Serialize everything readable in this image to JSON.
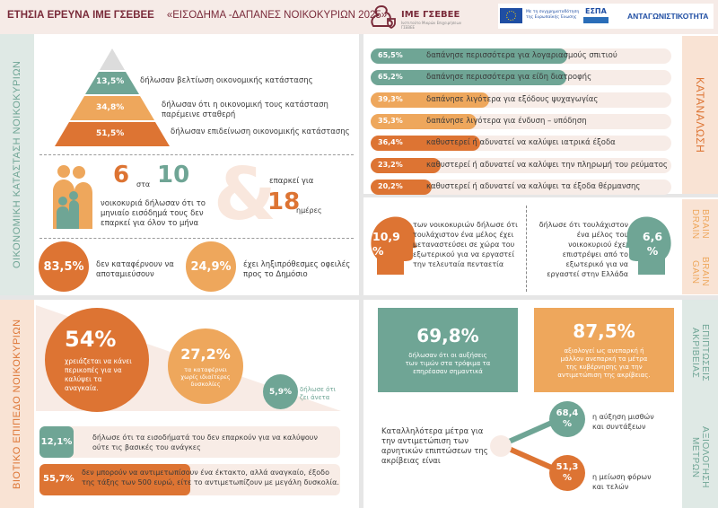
{
  "header": {
    "survey": "ΕΤΗΣΙΑ ΕΡΕΥΝΑ ΙΜΕ ΓΣΕΒΕΕ",
    "title": "«ΕΙΣΟΔΗΜΑ -ΔΑΠΑΝΕΣ ΝΟΙΚΟΚΥΡΙΩΝ 2025»",
    "logo_name": "ΙΜΕ ΓΣΕΒΕΕ",
    "logo_sub": "Ινστιτούτο Μικρών Επιχειρήσεων ΓΣΕΒΕΕ",
    "eu_text": "Με τη συγχρηματοδότηση της Ευρωπαϊκής Ένωσης",
    "espa": "ΕΣΠΑ",
    "program": "ΑΝΤΑΓΩΝΙΣΤΙΚΟΤΗΤΑ"
  },
  "colors": {
    "teal": "#6fa595",
    "orange": "#dd7433",
    "light_orange": "#eea75c",
    "maroon": "#7a2b3a"
  },
  "financial": {
    "section_label": "ΟΙΚΟΝΟΜΙΚΗ ΚΑΤΑΣΤΑΣΗ ΝΟΙΚΟΚΥΡΙΩΝ",
    "pyramid": [
      {
        "value": "13,5%",
        "label": "δήλωσαν βελτίωση οικονομικής κατάστασης"
      },
      {
        "value": "34,8%",
        "label": "δήλωσαν ότι η οικονομική τους κατάσταση παρέμεινε σταθερή"
      },
      {
        "value": "51,5%",
        "label": "δήλωσαν επιδείνωση οικονομικής κατάστασης"
      }
    ],
    "ratio_a": "6",
    "ratio_word": "στα",
    "ratio_b": "10",
    "ratio_text": "νοικοκυριά δήλωσαν ότι το μηνιαίο εισόδημά τους δεν επαρκεί για όλον το μήνα",
    "ampersand": "&",
    "suffices_for": "επαρκεί για",
    "days": "18",
    "days_unit": "ημέρες",
    "savings_value": "83,5%",
    "savings_text": "δεν καταφέρνουν να αποταμιεύσουν",
    "debts_value": "24,9%",
    "debts_text": "έχει ληξιπρόθεσμες οφειλές προς το Δημόσιο"
  },
  "consumption": {
    "section_label": "ΚΑΤΑΝΑΛΩΣΗ",
    "bars": [
      {
        "value": "65,5%",
        "pct": 65.5,
        "color": "teal",
        "label": "δαπάνησε περισσότερα για λογαριασμούς σπιτιού"
      },
      {
        "value": "65,2%",
        "pct": 65.2,
        "color": "teal",
        "label": "δαπάνησε περισσότερα για είδη διατροφής"
      },
      {
        "value": "39,3%",
        "pct": 39.3,
        "color": "light_orange",
        "label": "δαπάνησε λιγότερα για εξόδους ψυχαγωγίας"
      },
      {
        "value": "35,3%",
        "pct": 35.3,
        "color": "light_orange",
        "label": "δαπάνησε λιγότερα για ένδυση – υπόδηση"
      },
      {
        "value": "36,4%",
        "pct": 36.4,
        "color": "orange",
        "label": "καθυστερεί ή αδυνατεί να καλύψει ιατρικά έξοδα"
      },
      {
        "value": "23,2%",
        "pct": 23.2,
        "color": "orange",
        "label": "καθυστερεί ή αδυνατεί να καλύψει την πληρωμή του ρεύματος"
      },
      {
        "value": "20,2%",
        "pct": 20.2,
        "color": "orange",
        "label": "καθυστερεί ή αδυνατεί να καλύψει τα έξοδα θέρμανσης"
      }
    ]
  },
  "brain": {
    "label_drain": "BRAIN DRAIN",
    "label_gain": "BRAIN GAIN",
    "drain_value": "10,9 %",
    "drain_text": "των νοικοκυριών δήλωσε ότι τουλάχιστον ένα μέλος έχει μεταναστεύσει σε χώρα του εξωτερικού για να εργαστεί την τελευταία πενταετία",
    "gain_value": "6,6 %",
    "gain_text": "δήλωσε ότι τουλάχιστον ένα μέλος του νοικοκυριού έχει επιστρέψει από το εξωτερικό για να εργαστεί στην Ελλάδα"
  },
  "living": {
    "section_label": "ΒΙΟΤΙΚΟ ΕΠΙΠΕΔΟ ΝΟΙΚΟΚΥΡΙΩΝ",
    "c1_value": "54%",
    "c1_text": "χρειάζεται να κάνει περικοπές για να καλύψει τα αναγκαία.",
    "c2_value": "27,2%",
    "c2_text": "τα καταφέρνει χωρίς ιδιαίτερες δυσκολίες",
    "c3_value": "5,9%",
    "c3_text": "δήλωσε ότι ζει άνετα",
    "r1_value": "12,1%",
    "r1_text": "δήλωσε ότι τα εισοδήματά του δεν επαρκούν για να καλύψουν ούτε τις βασικές του ανάγκες",
    "r2_value": "55,7%",
    "r2_pct": 55.7,
    "r2_text": "δεν μπορούν να αντιμετωπίσουν ένα έκτακτο, αλλά αναγκαίο, έξοδο της τάξης των 500 ευρώ, είτε το αντιμετωπίζουν με μεγάλη δυσκολία."
  },
  "inflation": {
    "label_1": "ΕΠΙΠΤΩΣΕΙΣ ΑΚΡΙΒΕΙΑΣ",
    "label_2": "ΑΞΙΟΛΟΓΗΣΗ ΜΕΤΡΩΝ",
    "box1_value": "69,8%",
    "box1_text": "δήλωσαν ότι οι αυξήσεις των τιμών στα τρόφιμα τα επηρέασαν σημαντικά",
    "box2_value": "87,5%",
    "box2_text": "αξιολογεί ως ανεπαρκή ή μάλλον ανεπαρκή τα μέτρα της κυβέρνησης για την αντιμετώπιση της ακρίβειας.",
    "measures_intro": "Καταλληλότερα μέτρα για την αντιμετώπιση των αρνητικών επιπτώσεων της ακρίβειας είναι",
    "m1_value": "68,4 %",
    "m1_text": "η αύξηση μισθών και συντάξεων",
    "m2_value": "51,3 %",
    "m2_text": "η μείωση φόρων και τελών"
  }
}
